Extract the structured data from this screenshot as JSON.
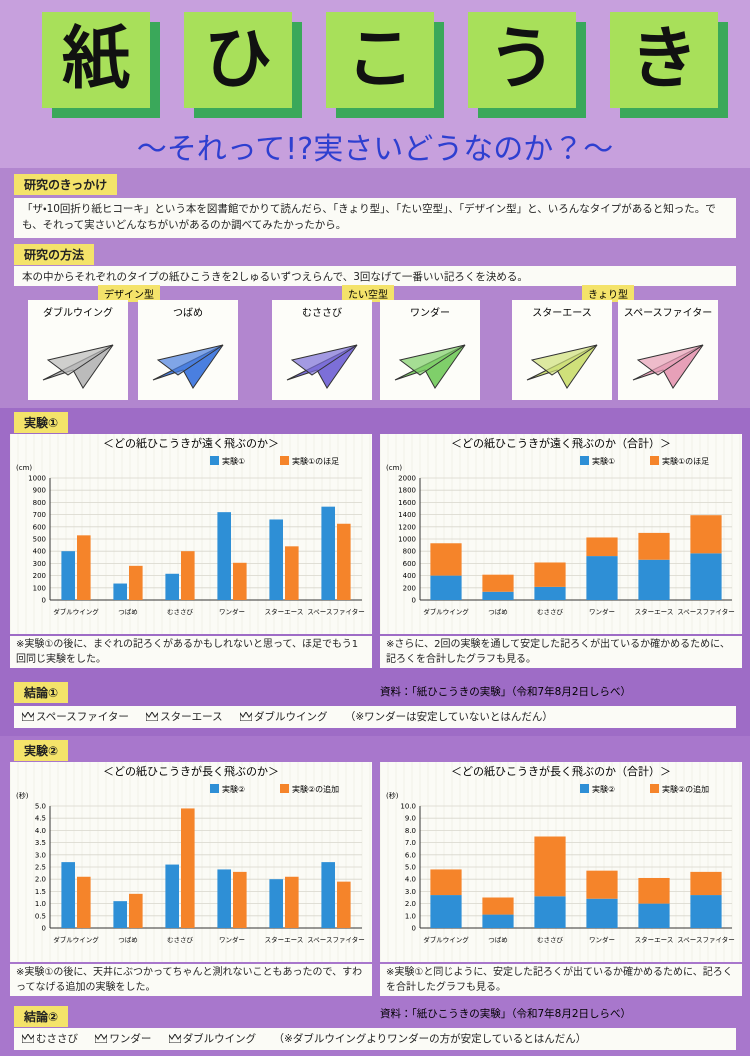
{
  "header": {
    "title_chars": [
      "紙",
      "ひ",
      "こ",
      "う",
      "き"
    ],
    "subtitle": "～それって!?実さいどうなのか？～"
  },
  "motivation": {
    "heading": "研究のきっかけ",
    "text": "「ザ・10回折り紙ヒコーキ」という本を図書館でかりて読んだら、「きょり型」、「たい空型」、「デザイン型」と、いろんなタイプがあると知った。でも、それって実さいどんなちがいがあるのか調べてみたかったから。"
  },
  "method": {
    "heading": "研究の方法",
    "text": "本の中からそれぞれのタイプの紙ひこうきを2しゅるいずつえらんで、3回なげて一番いい記ろくを決める。",
    "groups": [
      {
        "label": "デザイン型",
        "planes": [
          "ダブルウイング",
          "つばめ"
        ]
      },
      {
        "label": "たい空型",
        "planes": [
          "むささび",
          "ワンダー"
        ]
      },
      {
        "label": "きょり型",
        "planes": [
          "スターエース",
          "スペースファイター"
        ]
      }
    ]
  },
  "experiment1": {
    "heading": "実験①",
    "note_left": "※実験①の後に、まぐれの記ろくがあるかもしれないと思って、ほ足でもう1回同じ実験をした。",
    "note_right": "※さらに、2回の実験を通して安定した記ろくが出ているか確かめるために、記ろくを合計したグラフも見る。"
  },
  "conclusion1": {
    "heading": "結論①",
    "source": "資料：「紙ひこうきの実験」（令和7年8月2日しらべ）",
    "ranking": [
      "スペースファイター",
      "スターエース",
      "ダブルウイング"
    ],
    "remark": "（※ワンダーは安定していないとはんだん）"
  },
  "experiment2": {
    "heading": "実験②",
    "note_left": "※実験①の後に、天井にぶつかってちゃんと測れないこともあったので、すわってなげる追加の実験をした。",
    "note_right": "※実験①と同じように、安定した記ろくが出ているか確かめるために、記ろくを合計したグラフも見る。"
  },
  "conclusion2": {
    "heading": "結論②",
    "source": "資料：「紙ひこうきの実験」（令和7年8月2日しらべ）",
    "ranking": [
      "むささび",
      "ワンダー",
      "ダブルウイング"
    ],
    "remark": "（※ダブルウイングよりワンダーの方が安定しているとはんだん）"
  },
  "chart_data": [
    {
      "type": "bar",
      "title": "＜どの紙ひこうきが遠く飛ぶのか＞",
      "y_unit": "(cm)",
      "categories": [
        "ダブルウイング",
        "つばめ",
        "むささび",
        "ワンダー",
        "スターエース",
        "スペースファイター"
      ],
      "series": [
        {
          "name": "実験①",
          "color": "#2e8fd6",
          "values": [
            400,
            135,
            215,
            720,
            660,
            765
          ]
        },
        {
          "name": "実験①のほ足",
          "color": "#f5842a",
          "values": [
            530,
            280,
            400,
            305,
            440,
            625
          ]
        }
      ],
      "ylim": [
        0,
        1000
      ],
      "yticks": [
        0,
        100,
        200,
        300,
        400,
        500,
        600,
        700,
        800,
        900,
        1000
      ],
      "grid": true
    },
    {
      "type": "stacked",
      "title": "＜どの紙ひこうきが遠く飛ぶのか（合計）＞",
      "y_unit": "(cm)",
      "categories": [
        "ダブルウイング",
        "つばめ",
        "むささび",
        "ワンダー",
        "スターエース",
        "スペースファイター"
      ],
      "series": [
        {
          "name": "実験①",
          "color": "#2e8fd6",
          "values": [
            400,
            135,
            215,
            720,
            660,
            765
          ]
        },
        {
          "name": "実験①のほ足",
          "color": "#f5842a",
          "values": [
            530,
            280,
            400,
            305,
            440,
            625
          ]
        }
      ],
      "ylim": [
        0,
        2000
      ],
      "yticks": [
        0,
        200,
        400,
        600,
        800,
        1000,
        1200,
        1400,
        1600,
        1800,
        2000
      ],
      "grid": true
    },
    {
      "type": "bar",
      "title": "＜どの紙ひこうきが長く飛ぶのか＞",
      "y_unit": "(秒)",
      "categories": [
        "ダブルウイング",
        "つばめ",
        "むささび",
        "ワンダー",
        "スターエース",
        "スペースファイター"
      ],
      "series": [
        {
          "name": "実験②",
          "color": "#2e8fd6",
          "values": [
            2.7,
            1.1,
            2.6,
            2.4,
            2,
            2.7
          ]
        },
        {
          "name": "実験②の追加",
          "color": "#f5842a",
          "values": [
            2.1,
            1.4,
            4.9,
            2.3,
            2.1,
            1.9
          ]
        }
      ],
      "ylim": [
        0,
        5
      ],
      "yticks": [
        0,
        0.5,
        {
          "value": 1,
          "label": "1.0"
        },
        1.5,
        {
          "value": 2,
          "label": "2.0"
        },
        2.5,
        {
          "value": 3,
          "label": "3.0"
        },
        3.5,
        {
          "value": 4,
          "label": "4.0"
        },
        4.5,
        {
          "value": 5,
          "label": "5.0"
        }
      ],
      "grid": true
    },
    {
      "type": "stacked",
      "title": "＜どの紙ひこうきが長く飛ぶのか（合計）＞",
      "y_unit": "(秒)",
      "categories": [
        "ダブルウイング",
        "つばめ",
        "むささび",
        "ワンダー",
        "スターエース",
        "スペースファイター"
      ],
      "series": [
        {
          "name": "実験②",
          "color": "#2e8fd6",
          "values": [
            2.7,
            1.1,
            2.6,
            2.4,
            2,
            2.7
          ]
        },
        {
          "name": "実験②の追加",
          "color": "#f5842a",
          "values": [
            2.1,
            1.4,
            4.9,
            2.3,
            2.1,
            1.9
          ]
        }
      ],
      "ylim": [
        0,
        10
      ],
      "yticks": [
        0,
        {
          "value": 1,
          "label": "1.0"
        },
        {
          "value": 2,
          "label": "2.0"
        },
        {
          "value": 3,
          "label": "3.0"
        },
        {
          "value": 4,
          "label": "4.0"
        },
        {
          "value": 5,
          "label": "5.0"
        },
        {
          "value": 6,
          "label": "6.0"
        },
        {
          "value": 7,
          "label": "7.0"
        },
        {
          "value": 8,
          "label": "8.0"
        },
        {
          "value": 9,
          "label": "9.0"
        },
        {
          "value": 10,
          "label": "10.0"
        }
      ],
      "grid": true
    }
  ]
}
